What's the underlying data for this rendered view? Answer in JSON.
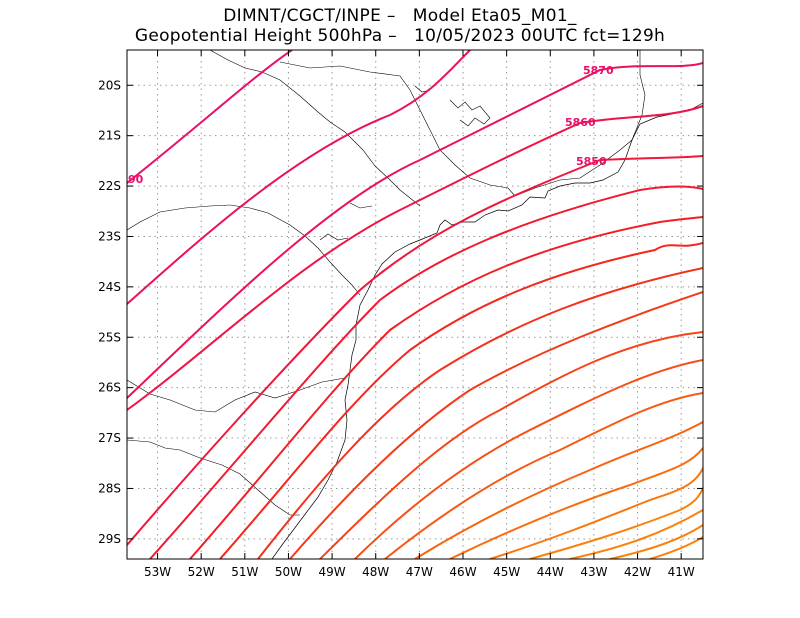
{
  "title": {
    "line1": "DIMNT/CGCT/INPE –   Model Eta05_M01_",
    "line2": "Geopotential Height 500hPa –   10/05/2023 00UTC fct=129h"
  },
  "map": {
    "lon_range": [
      -53.7,
      -40.5
    ],
    "lat_range": [
      -29.4,
      -19.3
    ],
    "lon_ticks": [
      {
        "value": -53,
        "label": "53W"
      },
      {
        "value": -52,
        "label": "52W"
      },
      {
        "value": -51,
        "label": "51W"
      },
      {
        "value": -50,
        "label": "50W"
      },
      {
        "value": -49,
        "label": "49W"
      },
      {
        "value": -48,
        "label": "48W"
      },
      {
        "value": -47,
        "label": "47W"
      },
      {
        "value": -46,
        "label": "46W"
      },
      {
        "value": -45,
        "label": "45W"
      },
      {
        "value": -44,
        "label": "44W"
      },
      {
        "value": -43,
        "label": "43W"
      },
      {
        "value": -42,
        "label": "42W"
      },
      {
        "value": -41,
        "label": "41W"
      }
    ],
    "lat_ticks": [
      {
        "value": -20,
        "label": "20S"
      },
      {
        "value": -21,
        "label": "21S"
      },
      {
        "value": -22,
        "label": "22S"
      },
      {
        "value": -23,
        "label": "23S"
      },
      {
        "value": -24,
        "label": "24S"
      },
      {
        "value": -25,
        "label": "25S"
      },
      {
        "value": -26,
        "label": "26S"
      },
      {
        "value": -27,
        "label": "27S"
      },
      {
        "value": -28,
        "label": "28S"
      },
      {
        "value": -29,
        "label": "29S"
      }
    ],
    "contour_labels": [
      {
        "text": "5870",
        "color": "#e8106c"
      },
      {
        "text": "5860",
        "color": "#e8106c"
      },
      {
        "text": "5850",
        "color": "#e8106c"
      },
      {
        "text": "90",
        "color": "#e8106c"
      }
    ],
    "contour_colors": [
      "#e8106c",
      "#ea1060",
      "#ec1254",
      "#ee1448",
      "#f0163c",
      "#f21a30",
      "#f21e26",
      "#f4261f",
      "#f4301c",
      "#f53a1a",
      "#f64417",
      "#f74e15",
      "#f85812",
      "#f96210",
      "#fa6c0e",
      "#fb760c",
      "#fc800a"
    ]
  }
}
